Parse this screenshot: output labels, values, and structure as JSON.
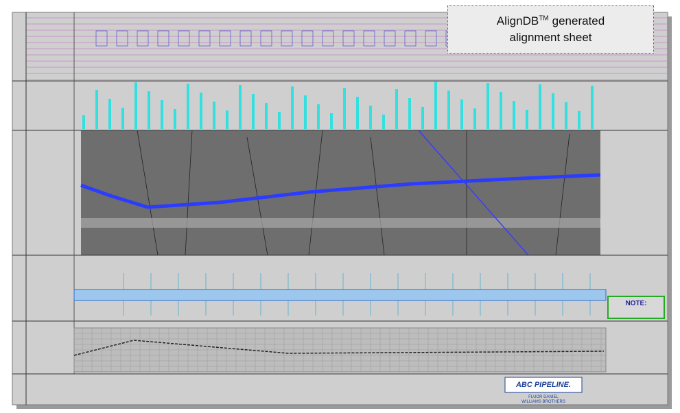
{
  "callout": {
    "brand": "AlignDB",
    "trademark": "TM",
    "line1": "generated",
    "line2": "alignment sheet"
  },
  "note": {
    "heading": "NOTE:"
  },
  "title_block": {
    "logo": "ABC PIPELINE.",
    "contractor": [
      "FLUOR DANIEL",
      "WILLIAMS BROTHERS"
    ]
  }
}
